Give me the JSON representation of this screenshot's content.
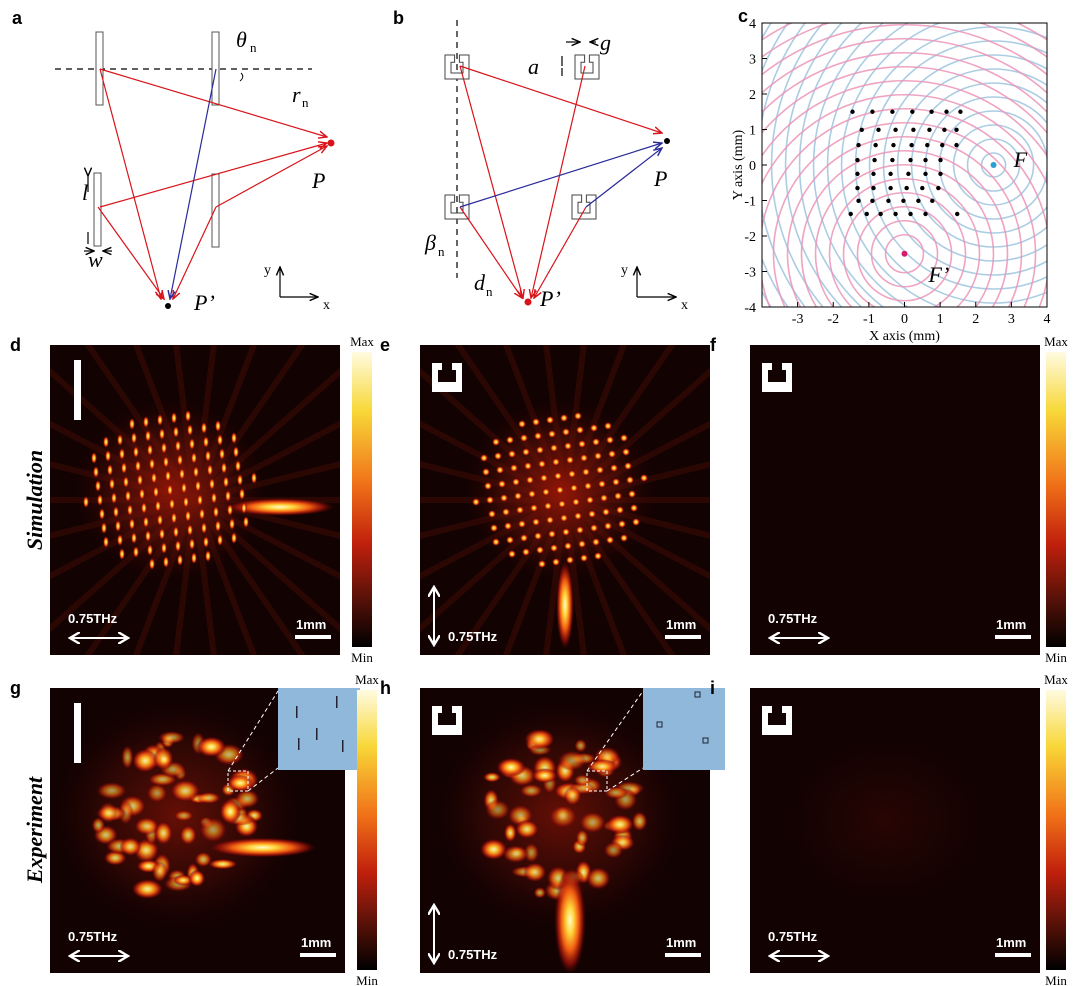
{
  "panels": {
    "a": {
      "label": "a",
      "theta": "θ",
      "theta_sub": "n",
      "r": "r",
      "r_sub": "n",
      "P": "P",
      "P_prime": "P’",
      "l": "l",
      "w": "w",
      "y": "y",
      "x": "x"
    },
    "b": {
      "label": "b",
      "a": "a",
      "g": "g",
      "P": "P",
      "P_prime": "P’",
      "beta": "β",
      "beta_sub": "n",
      "d": "d",
      "d_sub": "n",
      "y": "y",
      "x": "x"
    },
    "c": {
      "label": "c",
      "x_label": "X axis (mm)",
      "y_label": "Y axis (mm)",
      "xlim": [
        -4,
        4
      ],
      "ylim": [
        -4,
        4
      ],
      "xticks": [
        -3,
        -2,
        -1,
        0,
        1,
        2,
        3,
        4
      ],
      "yticks": [
        -4,
        -3,
        -2,
        -1,
        0,
        1,
        2,
        3,
        4
      ],
      "foci": [
        {
          "label": "F",
          "x": 2.5,
          "y": 0,
          "color": "#2a9fd6"
        },
        {
          "label": "F’",
          "x": 0,
          "y": -2.5,
          "color": "#d61a6e"
        }
      ],
      "points": {
        "x": [
          -1.46,
          -0.9,
          -0.34,
          0.22,
          0.76,
          1.18,
          1.57,
          -1.2,
          -0.73,
          -0.25,
          0.25,
          0.7,
          1.12,
          1.46,
          -1.29,
          -0.81,
          -0.31,
          0.2,
          0.64,
          1.06,
          1.46,
          -1.32,
          -0.84,
          -0.34,
          0.17,
          0.59,
          1.01,
          -1.32,
          -0.87,
          -0.39,
          0.11,
          0.59,
          1.01,
          -1.32,
          -0.87,
          -0.39,
          0.06,
          0.5,
          0.95,
          -1.29,
          -0.9,
          -0.45,
          -0.03,
          0.39,
          0.78,
          -1.51,
          -1.06,
          -0.67,
          -0.25,
          0.17,
          0.59,
          1.48
        ],
        "y": [
          1.5,
          1.5,
          1.5,
          1.5,
          1.5,
          1.5,
          1.5,
          0.99,
          0.99,
          0.99,
          0.99,
          0.99,
          0.99,
          0.99,
          0.56,
          0.56,
          0.56,
          0.56,
          0.56,
          0.56,
          0.56,
          0.14,
          0.14,
          0.14,
          0.14,
          0.14,
          0.14,
          -0.25,
          -0.25,
          -0.25,
          -0.25,
          -0.25,
          -0.25,
          -0.65,
          -0.65,
          -0.65,
          -0.65,
          -0.65,
          -0.65,
          -1.01,
          -1.01,
          -1.01,
          -1.01,
          -1.01,
          -1.01,
          -1.38,
          -1.38,
          -1.38,
          -1.38,
          -1.38,
          -1.38,
          -1.38
        ]
      }
    },
    "d": {
      "label": "d",
      "frequency": "0.75THz",
      "scale_bar": "1mm"
    },
    "e": {
      "label": "e",
      "frequency": "0.75THz",
      "scale_bar": "1mm"
    },
    "f": {
      "label": "f",
      "frequency": "0.75THz",
      "scale_bar": "1mm"
    },
    "g": {
      "label": "g",
      "frequency": "0.75THz",
      "scale_bar": "1mm"
    },
    "h": {
      "label": "h",
      "frequency": "0.75THz",
      "scale_bar": "1mm"
    },
    "i": {
      "label": "i",
      "frequency": "0.75THz",
      "scale_bar": "1mm"
    }
  },
  "row_labels": {
    "simulation": "Simulation",
    "experiment": "Experiment"
  },
  "colorbar": {
    "max": "Max",
    "min": "Min"
  }
}
